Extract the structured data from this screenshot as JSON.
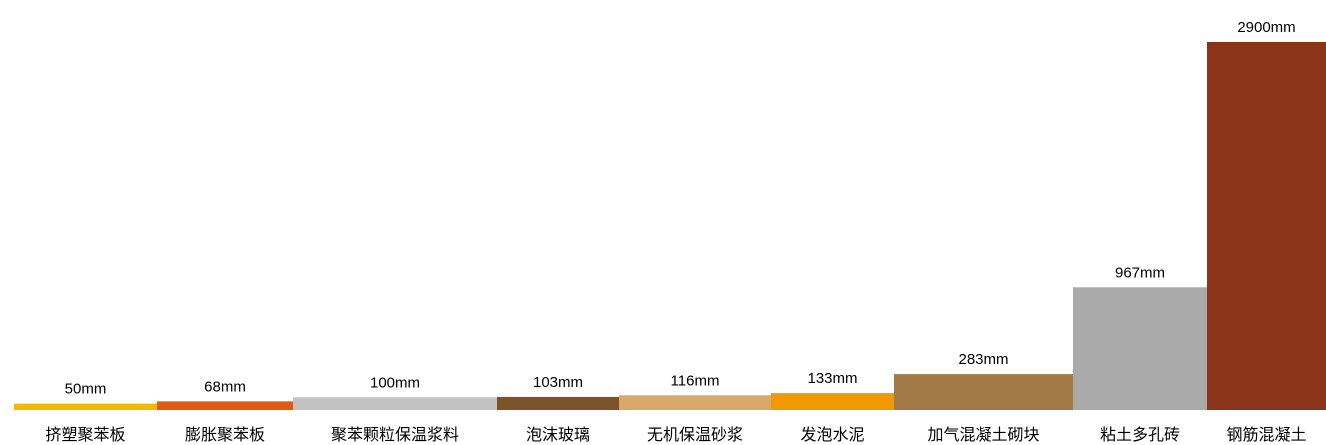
{
  "chart_data": {
    "type": "bar",
    "title": "",
    "xlabel": "",
    "ylabel": "",
    "unit": "mm",
    "categories": [
      "挤塑聚苯板",
      "膨胀聚苯板",
      "聚苯颗粒保温浆料",
      "泡沫玻璃",
      "无机保温砂浆",
      "发泡水泥",
      "加气混凝土砌块",
      "粘土多孔砖",
      "钢筋混凝土"
    ],
    "values": [
      50,
      68,
      100,
      103,
      116,
      133,
      283,
      967,
      2900
    ],
    "value_labels": [
      "50mm",
      "68mm",
      "100mm",
      "103mm",
      "116mm",
      "133mm",
      "283mm",
      "967mm",
      "2900mm"
    ],
    "colors": [
      "#f5b800",
      "#e05a10",
      "#c2c2c2",
      "#7a5428",
      "#d8a86c",
      "#ef9a00",
      "#a37a45",
      "#aaaaaa",
      "#8b3419"
    ],
    "variable_width": true,
    "grid": false,
    "legend": "none"
  }
}
